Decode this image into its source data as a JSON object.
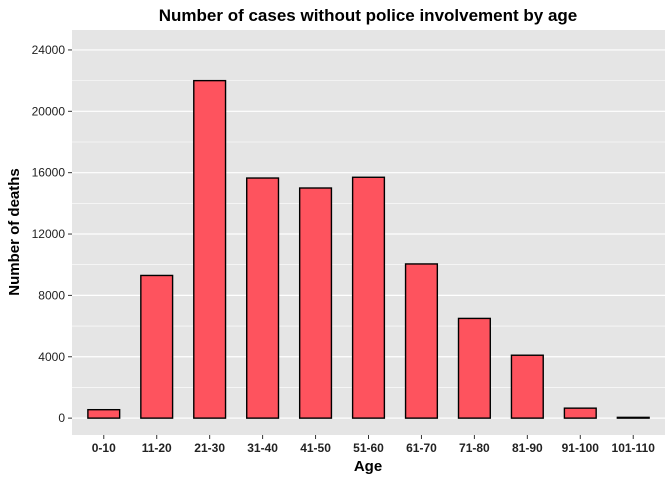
{
  "chart_data": {
    "type": "bar",
    "title": "Number of cases without police involvement by age",
    "xlabel": "Age",
    "ylabel": "Number of deaths",
    "categories": [
      "0-10",
      "11-20",
      "21-30",
      "31-40",
      "41-50",
      "51-60",
      "61-70",
      "71-80",
      "81-90",
      "91-100",
      "101-110"
    ],
    "values": [
      550,
      9300,
      22000,
      15650,
      15000,
      15700,
      10050,
      6500,
      4100,
      650,
      50
    ],
    "ylim": [
      -1100,
      25300
    ],
    "yticks": [
      0,
      4000,
      8000,
      12000,
      16000,
      20000,
      24000
    ],
    "ytick_labels": [
      "0",
      "4000",
      "8000",
      "12000",
      "16000",
      "20000",
      "24000"
    ],
    "grid": true,
    "bar_color": "#fe535e",
    "bar_border_color": "#000000",
    "panel_color": "#e5e5e5",
    "grid_color": "#ffffff"
  }
}
